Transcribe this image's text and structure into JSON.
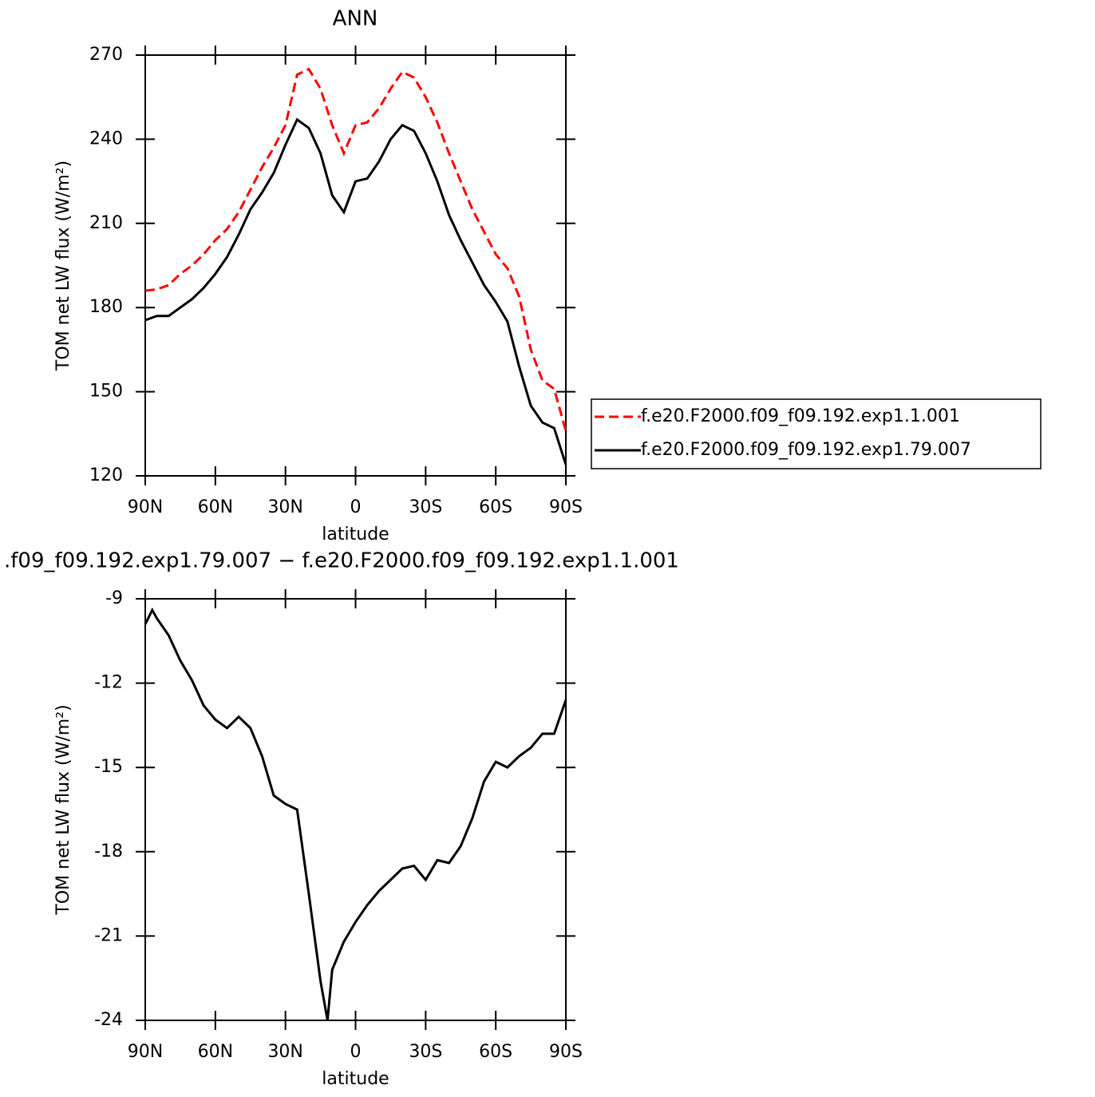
{
  "chart_data": [
    {
      "type": "line",
      "title": "ANN",
      "xlabel": "latitude",
      "ylabel": "TOM net LW flux (W/m²)",
      "x": [
        90,
        85,
        80,
        75,
        70,
        65,
        60,
        55,
        50,
        45,
        40,
        35,
        30,
        25,
        20,
        15,
        10,
        5,
        0,
        -5,
        -10,
        -15,
        -20,
        -25,
        -30,
        -35,
        -40,
        -45,
        -50,
        -55,
        -60,
        -65,
        -70,
        -75,
        -80,
        -85,
        -90
      ],
      "series": [
        {
          "name": "f.e20.F2000.f09_f09.192.exp1.1.001",
          "color": "#ff0000",
          "style": "dashed",
          "values": [
            186,
            186.5,
            188,
            192,
            195,
            199,
            204,
            208,
            214,
            222,
            230,
            237,
            245,
            263,
            265,
            258,
            245,
            235,
            245,
            246,
            251,
            258,
            264,
            262,
            255,
            246,
            235,
            225,
            215,
            207,
            199,
            194,
            184,
            165,
            154,
            151,
            136
          ]
        },
        {
          "name": "f.e20.F2000.f09_f09.192.exp1.79.007",
          "color": "#000000",
          "style": "solid",
          "values": [
            175.5,
            177,
            177,
            180,
            183,
            187,
            192,
            198,
            206,
            215,
            221,
            228,
            238,
            247,
            244,
            235,
            220,
            214,
            225,
            226,
            232,
            240,
            245,
            243,
            235,
            225,
            213,
            204,
            196,
            188,
            182,
            175,
            159,
            145,
            139,
            137,
            124
          ]
        }
      ],
      "xlim": [
        90,
        -90
      ],
      "xticks": [
        {
          "value": 90,
          "label": "90N"
        },
        {
          "value": 60,
          "label": "60N"
        },
        {
          "value": 30,
          "label": "30N"
        },
        0,
        {
          "value": -30,
          "label": "30S"
        },
        {
          "value": -60,
          "label": "60S"
        },
        {
          "value": -90,
          "label": "90S"
        }
      ],
      "ylim": [
        120,
        270
      ],
      "yticks": [
        120,
        150,
        180,
        210,
        240,
        270
      ],
      "legend": "right"
    },
    {
      "type": "line",
      "title": ".f09_f09.192.exp1.79.007 − f.e20.F2000.f09_f09.192.exp1.1.001",
      "xlabel": "latitude",
      "ylabel": "TOM net LW flux (W/m²)",
      "x": [
        90,
        87,
        85,
        80,
        75,
        70,
        65,
        60,
        55,
        50,
        45,
        40,
        35,
        30,
        25,
        20,
        15,
        12,
        10,
        5,
        0,
        -5,
        -10,
        -15,
        -20,
        -25,
        -30,
        -35,
        -40,
        -45,
        -50,
        -55,
        -60,
        -65,
        -70,
        -75,
        -80,
        -85,
        -90
      ],
      "series": [
        {
          "color": "#000000",
          "style": "solid",
          "values": [
            -9.9,
            -9.4,
            -9.7,
            -10.3,
            -11.2,
            -11.9,
            -12.8,
            -13.3,
            -13.6,
            -13.2,
            -13.6,
            -14.6,
            -16.0,
            -16.3,
            -16.5,
            -19.5,
            -22.6,
            -24,
            -22.2,
            -21.2,
            -20.5,
            -19.9,
            -19.4,
            -19.0,
            -18.6,
            -18.5,
            -19.0,
            -18.3,
            -18.4,
            -17.8,
            -16.8,
            -15.5,
            -14.8,
            -15.0,
            -14.6,
            -14.3,
            -13.8,
            -13.8,
            -12.6
          ]
        }
      ],
      "xlim": [
        90,
        -90
      ],
      "xticks": [
        {
          "value": 90,
          "label": "90N"
        },
        {
          "value": 60,
          "label": "60N"
        },
        {
          "value": 30,
          "label": "30N"
        },
        0,
        {
          "value": -30,
          "label": "30S"
        },
        {
          "value": -60,
          "label": "60S"
        },
        {
          "value": -90,
          "label": "90S"
        }
      ],
      "ylim": [
        -24,
        -9
      ],
      "yticks": [
        -24,
        -21,
        -18,
        -15,
        -12,
        -9
      ]
    }
  ]
}
